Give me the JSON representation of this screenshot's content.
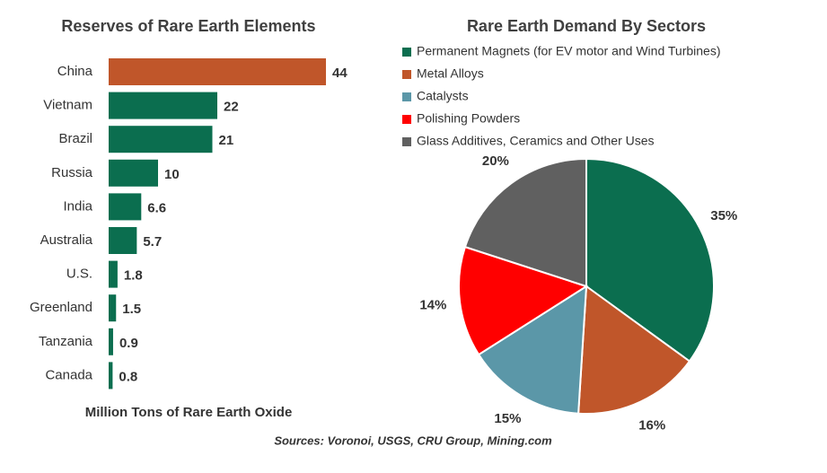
{
  "chart_data": [
    {
      "type": "bar",
      "orientation": "horizontal",
      "title": "Reserves of Rare Earth Elements",
      "categories": [
        "China",
        "Vietnam",
        "Brazil",
        "Russia",
        "India",
        "Australia",
        "U.S.",
        "Greenland",
        "Tanzania",
        "Canada"
      ],
      "values": [
        44,
        22,
        21,
        10,
        6.6,
        5.7,
        1.8,
        1.5,
        0.9,
        0.8
      ],
      "colors": [
        "#c0562a",
        "#0b6e4f",
        "#0b6e4f",
        "#0b6e4f",
        "#0b6e4f",
        "#0b6e4f",
        "#0b6e4f",
        "#0b6e4f",
        "#0b6e4f",
        "#0b6e4f"
      ],
      "x_label": "Million Tons of Rare Earth Oxide"
    },
    {
      "type": "pie",
      "title": "Rare Earth Demand By Sectors",
      "categories": [
        "Permanent Magnets (for EV motor and Wind Turbines)",
        "Metal Alloys",
        "Catalysts",
        "Polishing Powders",
        "Glass Additives, Ceramics and Other Uses"
      ],
      "values": [
        35,
        16,
        15,
        14,
        20
      ],
      "value_labels": [
        "35%",
        "16%",
        "15%",
        "14%",
        "20%"
      ],
      "colors": [
        "#0b6e4f",
        "#c0562a",
        "#5b97a8",
        "#ff0000",
        "#606060"
      ]
    }
  ],
  "source": "Sources: Voronoi, USGS, CRU Group, Mining.com"
}
